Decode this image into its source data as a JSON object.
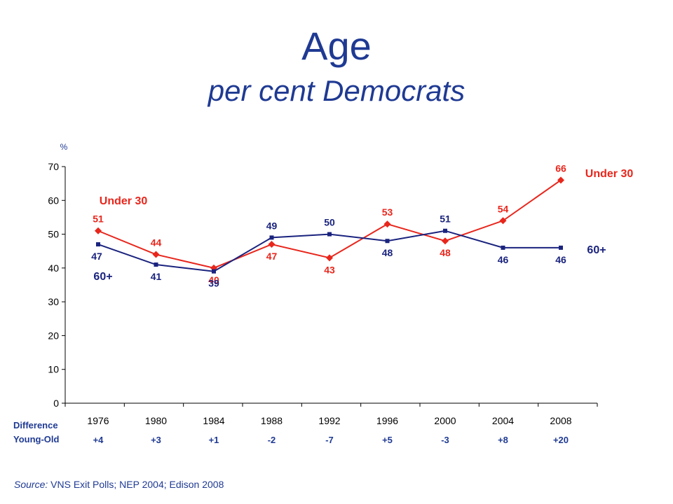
{
  "title": "Age",
  "subtitle": "per cent Democrats",
  "source_prefix": "Source:",
  "source_text": " VNS Exit Polls; NEP 2004; Edison 2008",
  "difference_label_line1": "Difference",
  "difference_label_line2": "Young-Old",
  "colors": {
    "young": "#e8261c",
    "old": "#1a237e",
    "text": "#1f3a93"
  },
  "chart_data": {
    "type": "line",
    "x": [
      "1976",
      "1980",
      "1984",
      "1988",
      "1992",
      "1996",
      "2000",
      "2004",
      "2008"
    ],
    "ylabel": "%",
    "ylim": [
      0,
      70
    ],
    "yticks": [
      0,
      10,
      20,
      30,
      40,
      50,
      60,
      70
    ],
    "grid": false,
    "series": [
      {
        "name": "Under 30",
        "values": [
          51,
          44,
          40,
          47,
          43,
          53,
          48,
          54,
          66
        ],
        "color": "#e8261c",
        "marker": "diamond"
      },
      {
        "name": "60+",
        "values": [
          47,
          41,
          39,
          49,
          50,
          48,
          51,
          46,
          46
        ],
        "color": "#1a237e",
        "marker": "square"
      }
    ],
    "difference": [
      "+4",
      "+3",
      "+1",
      "-2",
      "-7",
      "+5",
      "-3",
      "+8",
      "+20"
    ]
  }
}
